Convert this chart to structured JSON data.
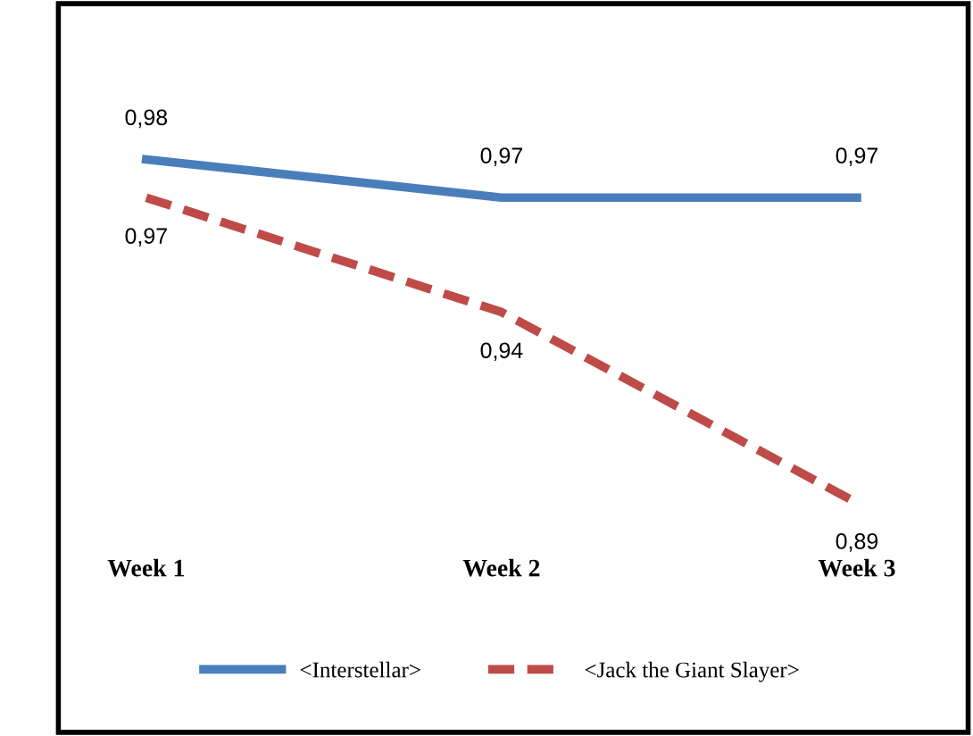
{
  "chart_data": {
    "type": "line",
    "categories": [
      "Week 1",
      "Week 2",
      "Week 3"
    ],
    "series": [
      {
        "name": "<Interstellar>",
        "color": "#4a7ebb",
        "line_style": "solid",
        "values": [
          0.98,
          0.97,
          0.97
        ],
        "value_labels": [
          "0,98",
          "0,97",
          "0,97"
        ]
      },
      {
        "name": "<Jack the Giant Slayer>",
        "color": "#be4b48",
        "line_style": "dashed",
        "values": [
          0.97,
          0.94,
          0.89
        ],
        "value_labels": [
          "0,97",
          "0,94",
          "0,89"
        ]
      }
    ],
    "tick_labels": "x",
    "grid": false,
    "legend": "bottom",
    "marker": "none"
  }
}
